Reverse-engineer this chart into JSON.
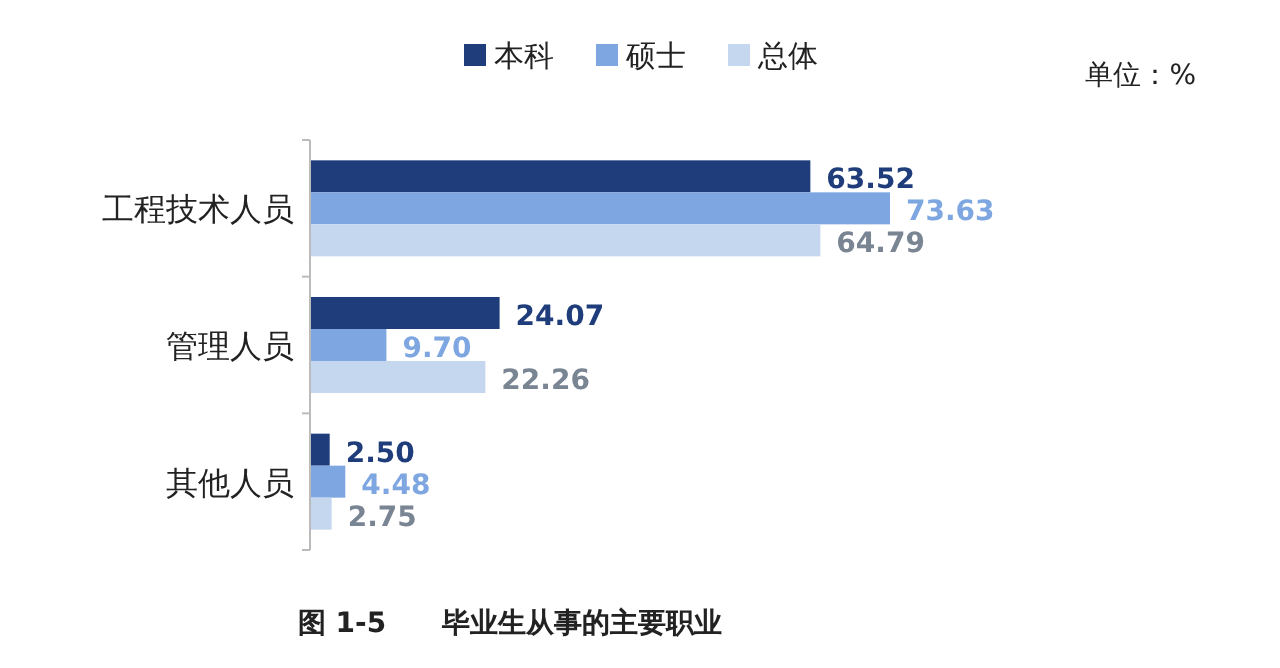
{
  "chart_data": {
    "type": "bar",
    "orientation": "horizontal",
    "title": "图 1-5　　毕业生从事的主要职业",
    "annotations": [
      "单位：%"
    ],
    "categories": [
      "工程技术人员",
      "管理人员",
      "其他人员"
    ],
    "series": [
      {
        "name": "本科",
        "color": "#1f3d7a",
        "values": [
          63.52,
          24.07,
          2.5
        ],
        "value_labels": [
          "63.52",
          "24.07",
          "2.50"
        ]
      },
      {
        "name": "硕士",
        "color": "#7ea6e0",
        "values": [
          73.63,
          9.7,
          4.48
        ],
        "value_labels": [
          "73.63",
          "9.70",
          "4.48"
        ]
      },
      {
        "name": "总体",
        "color": "#c5d7ef",
        "values": [
          64.79,
          22.26,
          2.75
        ],
        "value_labels": [
          "64.79",
          "22.26",
          "2.75"
        ]
      }
    ],
    "legend": "top"
  }
}
